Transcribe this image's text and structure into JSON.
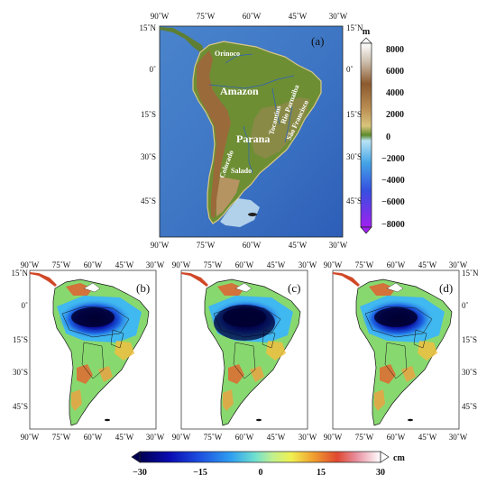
{
  "panels": {
    "a": {
      "label": "(a)"
    },
    "b": {
      "label": "(b)"
    },
    "c": {
      "label": "(c)"
    },
    "d": {
      "label": "(d)"
    }
  },
  "ticks": {
    "lon": [
      "90˚W",
      "75˚W",
      "60˚W",
      "45˚W",
      "30˚W"
    ],
    "lon_small": [
      "90˚W",
      "75˚W",
      "60˚W",
      "45˚W",
      "30˚W"
    ],
    "lat_left": [
      "15˚N",
      "0˚",
      "15˚S",
      "30˚S",
      "45˚S"
    ],
    "lat_right": [
      "15˚N",
      "0˚",
      "15˚S",
      "30˚S",
      "45˚S"
    ]
  },
  "rivers": {
    "orinoco": "Orinoco",
    "amazon": "Amazon",
    "tocantins": "Tocantins",
    "parnaiba": "Rio Parnaiba",
    "sao_francisco": "São Francisco",
    "parana": "Parana",
    "colorado": "Colorado",
    "salado": "Salado"
  },
  "elevation_colorbar": {
    "unit": "m",
    "ticks": [
      "8000",
      "6000",
      "4000",
      "2000",
      "0",
      "−2000",
      "−4000",
      "−6000",
      "−8000"
    ],
    "colors": [
      "#ffffff",
      "#c9b8a3",
      "#8c5a2e",
      "#b08a52",
      "#d9c27a",
      "#6e8e2c",
      "#3c7a1e",
      "#9fd7f0",
      "#45a5e6",
      "#2a5ce0",
      "#6b3be0",
      "#a020f0"
    ]
  },
  "change_colorbar": {
    "unit": "cm",
    "ticks": [
      "−30",
      "−15",
      "0",
      "15",
      "30"
    ],
    "colors": [
      "#000060",
      "#1010c0",
      "#1e60e0",
      "#30a0f0",
      "#60d8e0",
      "#b0f0a0",
      "#f0f060",
      "#f0b040",
      "#e05030",
      "#e08080",
      "#f8c8d8",
      "#ffffff"
    ]
  }
}
